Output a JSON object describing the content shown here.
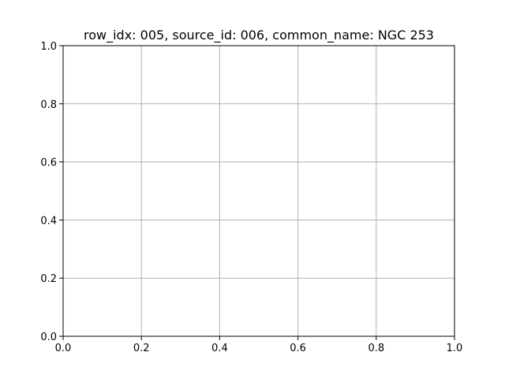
{
  "chart_data": {
    "type": "line",
    "title": "row_idx: 005, source_id: 006, common_name: NGC 253",
    "xlabel": "",
    "ylabel": "",
    "xlim": [
      0.0,
      1.0
    ],
    "ylim": [
      0.0,
      1.0
    ],
    "xticks": [
      0.0,
      0.2,
      0.4,
      0.6,
      0.8,
      1.0
    ],
    "yticks": [
      0.0,
      0.2,
      0.4,
      0.6,
      0.8,
      1.0
    ],
    "xtick_labels": [
      "0.0",
      "0.2",
      "0.4",
      "0.6",
      "0.8",
      "1.0"
    ],
    "ytick_labels": [
      "0.0",
      "0.2",
      "0.4",
      "0.6",
      "0.8",
      "1.0"
    ],
    "grid": true,
    "series": []
  },
  "colors": {
    "grid": "#b0b0b0",
    "axes": "#000000",
    "background": "#ffffff"
  }
}
